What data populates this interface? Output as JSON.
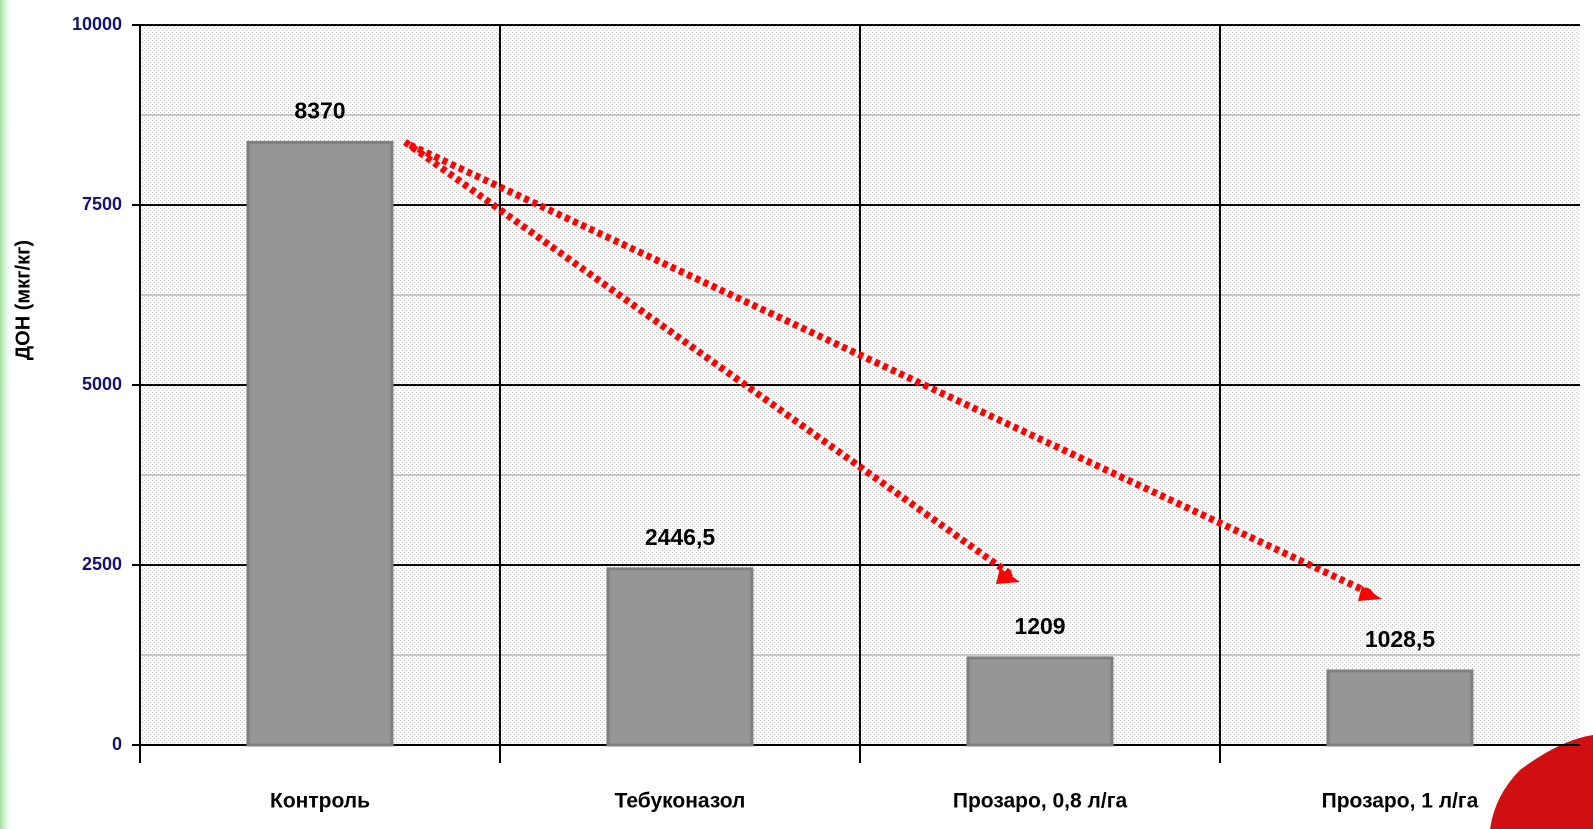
{
  "chart_data": {
    "type": "bar",
    "y_axis_label": "ДОН (мкг/кг)",
    "categories": [
      "Контроль",
      "Тебуконазол",
      "Прозаро, 0,8 л/га",
      "Прозаро, 1 л/га"
    ],
    "values": [
      8370,
      2446.5,
      1209,
      1028.5
    ],
    "value_labels": [
      "8370",
      "2446,5",
      "1209",
      "1028,5"
    ],
    "color": "#969696",
    "ylim": [
      0,
      10000
    ],
    "yticks": [
      0,
      2500,
      5000,
      7500,
      10000
    ],
    "grid": true
  }
}
